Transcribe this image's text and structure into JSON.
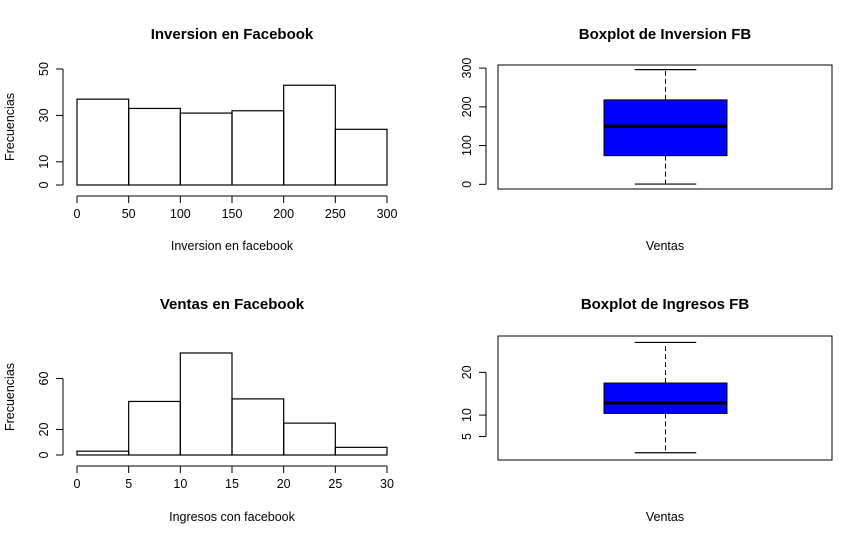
{
  "colors": {
    "box_fill": "#0000ff",
    "stroke": "#000000",
    "background": "#ffffff"
  },
  "chart_data": [
    {
      "type": "histogram",
      "title": "Inversion en Facebook",
      "xlabel": "Inversion en facebook",
      "ylabel": "Frecuencias",
      "bins": [
        [
          0,
          50
        ],
        [
          50,
          100
        ],
        [
          100,
          150
        ],
        [
          150,
          200
        ],
        [
          200,
          250
        ],
        [
          250,
          300
        ]
      ],
      "values": [
        37,
        33,
        31,
        32,
        43,
        24
      ],
      "xticks": [
        0,
        50,
        100,
        150,
        200,
        250,
        300
      ],
      "yticks": [
        0,
        10,
        30,
        50
      ],
      "xlim": [
        0,
        300
      ],
      "ylim": [
        0,
        50
      ]
    },
    {
      "type": "boxplot",
      "title": "Boxplot de Inversion FB",
      "xlabel": "Ventas",
      "ylabel": "",
      "stats": {
        "min": 0.7,
        "q1": 74,
        "median": 150,
        "q3": 218,
        "max": 296
      },
      "yticks": [
        0,
        100,
        200,
        300
      ],
      "ylim": [
        -12,
        308
      ],
      "fill": "#0000ff"
    },
    {
      "type": "histogram",
      "title": "Ventas en Facebook",
      "xlabel": "Ingresos con facebook",
      "ylabel": "Frecuencias",
      "bins": [
        [
          0,
          5
        ],
        [
          5,
          10
        ],
        [
          10,
          15
        ],
        [
          15,
          20
        ],
        [
          20,
          25
        ],
        [
          25,
          30
        ]
      ],
      "values": [
        3,
        42,
        80,
        44,
        25,
        6
      ],
      "xticks": [
        0,
        5,
        10,
        15,
        20,
        25,
        30
      ],
      "yticks": [
        0,
        20,
        60
      ],
      "xlim": [
        0,
        30
      ],
      "ylim": [
        0,
        80
      ]
    },
    {
      "type": "boxplot",
      "title": "Boxplot de Ingresos FB",
      "xlabel": "Ventas",
      "ylabel": "",
      "stats": {
        "min": 1.2,
        "q1": 10.4,
        "median": 12.9,
        "q3": 17.5,
        "max": 27
      },
      "yticks": [
        5,
        10,
        20
      ],
      "ylim": [
        -0.5,
        28.5
      ],
      "fill": "#0000ff"
    }
  ]
}
